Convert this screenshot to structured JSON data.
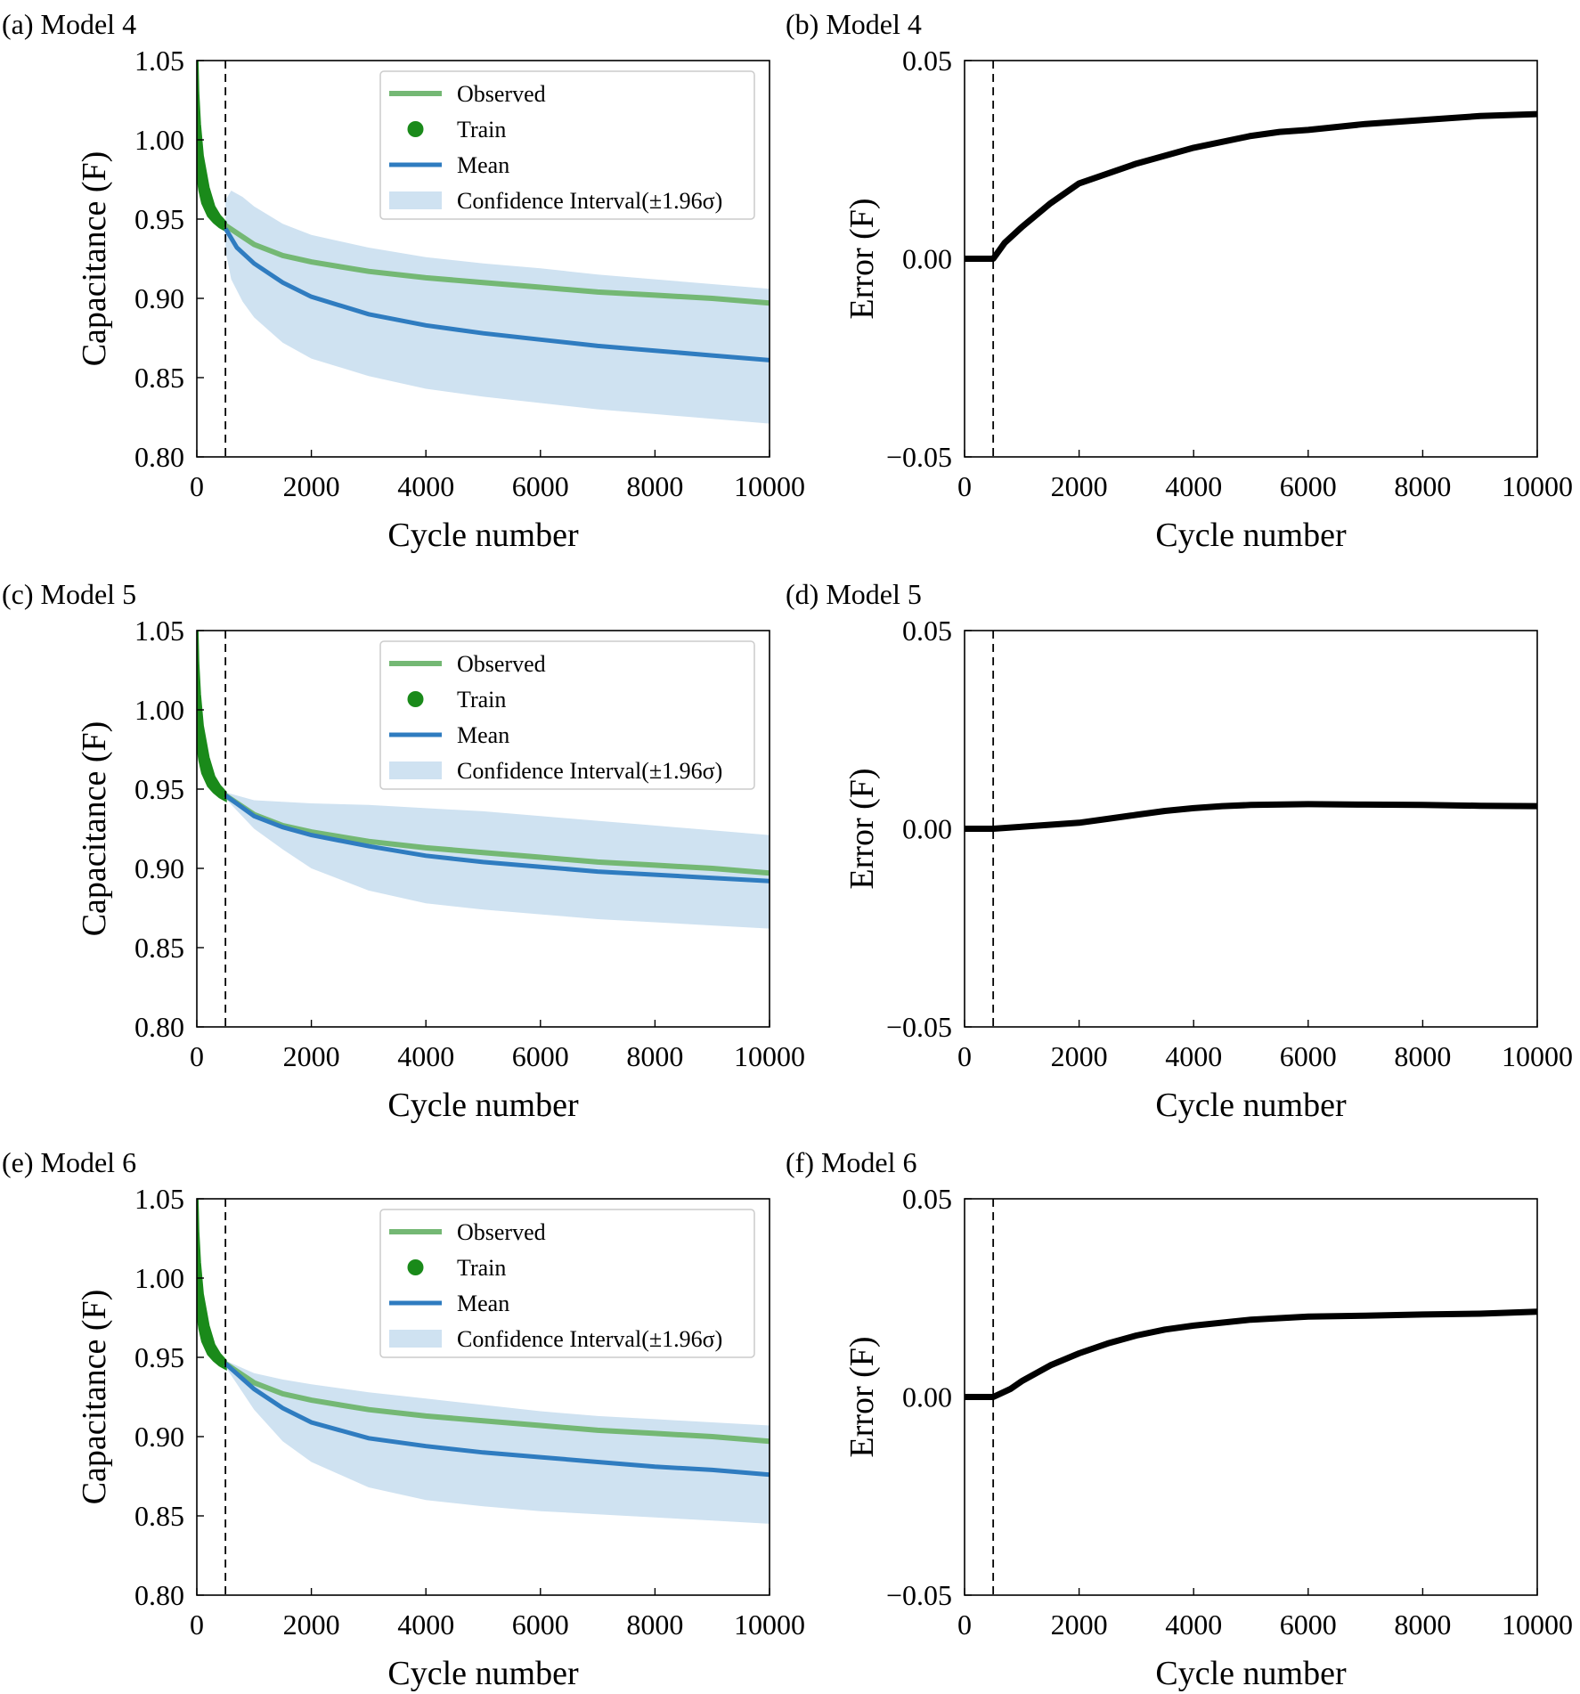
{
  "figure": {
    "panels": [
      {
        "id": "a",
        "label": "(a) Model 4",
        "kind": "capacitance"
      },
      {
        "id": "b",
        "label": "(b) Model 4",
        "kind": "error"
      },
      {
        "id": "c",
        "label": "(c) Model 5",
        "kind": "capacitance"
      },
      {
        "id": "d",
        "label": "(d) Model 5",
        "kind": "error"
      },
      {
        "id": "e",
        "label": "(e) Model 6",
        "kind": "capacitance"
      },
      {
        "id": "f",
        "label": "(f) Model 6",
        "kind": "error"
      }
    ]
  },
  "colors": {
    "observed": "#74b874",
    "train": "#1a8a1a",
    "mean": "#2f7cc0",
    "ci": "#cfe2f1",
    "error": "#000000",
    "divider": "#000000"
  },
  "chart_data": [
    {
      "type": "line",
      "panel": "a",
      "title": "(a) Model 4",
      "xlabel": "Cycle number",
      "ylabel": "Capacitance (F)",
      "xlim": [
        0,
        10000
      ],
      "ylim": [
        0.8,
        1.05
      ],
      "xticks": [
        0,
        2000,
        4000,
        6000,
        8000,
        10000
      ],
      "xtick_labels": [
        "0",
        "2000",
        "4000",
        "6000",
        "8000",
        "10000"
      ],
      "yticks": [
        0.8,
        0.85,
        0.9,
        0.95,
        1.0,
        1.05
      ],
      "ytick_labels": [
        "0.80",
        "0.85",
        "0.90",
        "0.95",
        "1.00",
        "1.05"
      ],
      "train_end": 500,
      "legend_position": "top-right",
      "legend": [
        "Observed",
        "Train",
        "Mean",
        "Confidence Interval(±1.96σ)"
      ],
      "train": {
        "x": [
          0,
          20,
          50,
          100,
          200,
          300,
          400,
          500
        ],
        "upper": [
          1.06,
          1.03,
          1.01,
          0.99,
          0.97,
          0.958,
          0.952,
          0.948
        ],
        "lower": [
          0.985,
          0.975,
          0.968,
          0.96,
          0.952,
          0.948,
          0.945,
          0.943
        ]
      },
      "observed": {
        "x": [
          500,
          1000,
          1500,
          2000,
          3000,
          4000,
          5000,
          6000,
          7000,
          8000,
          9000,
          10000
        ],
        "y": [
          0.946,
          0.934,
          0.927,
          0.923,
          0.917,
          0.913,
          0.91,
          0.907,
          0.904,
          0.902,
          0.9,
          0.897
        ]
      },
      "mean": {
        "x": [
          500,
          700,
          1000,
          1500,
          2000,
          3000,
          4000,
          5000,
          6000,
          7000,
          8000,
          9000,
          10000
        ],
        "y": [
          0.944,
          0.932,
          0.922,
          0.91,
          0.901,
          0.89,
          0.883,
          0.878,
          0.874,
          0.87,
          0.867,
          0.864,
          0.861
        ]
      },
      "ci": {
        "x": [
          500,
          600,
          800,
          1000,
          1500,
          2000,
          3000,
          4000,
          5000,
          6000,
          7000,
          8000,
          9000,
          10000
        ],
        "upper": [
          0.962,
          0.968,
          0.964,
          0.958,
          0.947,
          0.94,
          0.932,
          0.926,
          0.922,
          0.919,
          0.915,
          0.912,
          0.909,
          0.906
        ],
        "lower": [
          0.93,
          0.912,
          0.898,
          0.888,
          0.872,
          0.862,
          0.851,
          0.843,
          0.838,
          0.834,
          0.83,
          0.827,
          0.824,
          0.821
        ]
      }
    },
    {
      "type": "line",
      "panel": "b",
      "title": "(b) Model 4",
      "xlabel": "Cycle number",
      "ylabel": "Error (F)",
      "xlim": [
        0,
        10000
      ],
      "ylim": [
        -0.05,
        0.05
      ],
      "xticks": [
        0,
        2000,
        4000,
        6000,
        8000,
        10000
      ],
      "xtick_labels": [
        "0",
        "2000",
        "4000",
        "6000",
        "8000",
        "10000"
      ],
      "yticks": [
        -0.05,
        0,
        0.05
      ],
      "ytick_labels": [
        "−0.05",
        "0.00",
        "0.05"
      ],
      "train_end": 500,
      "error": {
        "x": [
          0,
          200,
          500,
          700,
          1000,
          1500,
          2000,
          3000,
          4000,
          5000,
          5500,
          6000,
          7000,
          8000,
          9000,
          10000
        ],
        "y": [
          0.0,
          0.0,
          0.0,
          0.004,
          0.008,
          0.014,
          0.019,
          0.024,
          0.028,
          0.031,
          0.032,
          0.0325,
          0.034,
          0.035,
          0.036,
          0.0365
        ]
      }
    },
    {
      "type": "line",
      "panel": "c",
      "title": "(c) Model 5",
      "xlabel": "Cycle number",
      "ylabel": "Capacitance (F)",
      "xlim": [
        0,
        10000
      ],
      "ylim": [
        0.8,
        1.05
      ],
      "xticks": [
        0,
        2000,
        4000,
        6000,
        8000,
        10000
      ],
      "xtick_labels": [
        "0",
        "2000",
        "4000",
        "6000",
        "8000",
        "10000"
      ],
      "yticks": [
        0.8,
        0.85,
        0.9,
        0.95,
        1.0,
        1.05
      ],
      "ytick_labels": [
        "0.80",
        "0.85",
        "0.90",
        "0.95",
        "1.00",
        "1.05"
      ],
      "train_end": 500,
      "legend_position": "top-right",
      "legend": [
        "Observed",
        "Train",
        "Mean",
        "Confidence Interval(±1.96σ)"
      ],
      "train": {
        "x": [
          0,
          20,
          50,
          100,
          200,
          300,
          400,
          500
        ],
        "upper": [
          1.06,
          1.03,
          1.01,
          0.99,
          0.97,
          0.958,
          0.952,
          0.948
        ],
        "lower": [
          0.985,
          0.975,
          0.968,
          0.96,
          0.952,
          0.948,
          0.945,
          0.943
        ]
      },
      "observed": {
        "x": [
          500,
          1000,
          1500,
          2000,
          3000,
          4000,
          5000,
          6000,
          7000,
          8000,
          9000,
          10000
        ],
        "y": [
          0.946,
          0.934,
          0.927,
          0.923,
          0.917,
          0.913,
          0.91,
          0.907,
          0.904,
          0.902,
          0.9,
          0.897
        ]
      },
      "mean": {
        "x": [
          500,
          1000,
          1500,
          2000,
          3000,
          4000,
          5000,
          6000,
          7000,
          8000,
          9000,
          10000
        ],
        "y": [
          0.946,
          0.933,
          0.926,
          0.921,
          0.914,
          0.908,
          0.904,
          0.901,
          0.898,
          0.896,
          0.894,
          0.892
        ]
      },
      "ci": {
        "x": [
          500,
          1000,
          1500,
          2000,
          3000,
          4000,
          5000,
          6000,
          7000,
          8000,
          9000,
          10000
        ],
        "upper": [
          0.948,
          0.943,
          0.942,
          0.941,
          0.94,
          0.938,
          0.936,
          0.933,
          0.93,
          0.927,
          0.924,
          0.921
        ],
        "lower": [
          0.944,
          0.925,
          0.912,
          0.9,
          0.886,
          0.878,
          0.874,
          0.871,
          0.868,
          0.866,
          0.864,
          0.862
        ]
      }
    },
    {
      "type": "line",
      "panel": "d",
      "title": "(d) Model 5",
      "xlabel": "Cycle number",
      "ylabel": "Error (F)",
      "xlim": [
        0,
        10000
      ],
      "ylim": [
        -0.05,
        0.05
      ],
      "xticks": [
        0,
        2000,
        4000,
        6000,
        8000,
        10000
      ],
      "xtick_labels": [
        "0",
        "2000",
        "4000",
        "6000",
        "8000",
        "10000"
      ],
      "yticks": [
        -0.05,
        0,
        0.05
      ],
      "ytick_labels": [
        "−0.05",
        "0.00",
        "0.05"
      ],
      "train_end": 500,
      "error": {
        "x": [
          0,
          500,
          1000,
          1500,
          2000,
          2500,
          3000,
          3500,
          4000,
          4500,
          5000,
          6000,
          7000,
          8000,
          9000,
          10000
        ],
        "y": [
          0.0,
          0.0,
          0.0005,
          0.001,
          0.0015,
          0.0025,
          0.0035,
          0.0045,
          0.0052,
          0.0057,
          0.006,
          0.0062,
          0.0061,
          0.006,
          0.0058,
          0.0057
        ]
      }
    },
    {
      "type": "line",
      "panel": "e",
      "title": "(e) Model 6",
      "xlabel": "Cycle number",
      "ylabel": "Capacitance (F)",
      "xlim": [
        0,
        10000
      ],
      "ylim": [
        0.8,
        1.05
      ],
      "xticks": [
        0,
        2000,
        4000,
        6000,
        8000,
        10000
      ],
      "xtick_labels": [
        "0",
        "2000",
        "4000",
        "6000",
        "8000",
        "10000"
      ],
      "yticks": [
        0.8,
        0.85,
        0.9,
        0.95,
        1.0,
        1.05
      ],
      "ytick_labels": [
        "0.80",
        "0.85",
        "0.90",
        "0.95",
        "1.00",
        "1.05"
      ],
      "train_end": 500,
      "legend_position": "top-right",
      "legend": [
        "Observed",
        "Train",
        "Mean",
        "Confidence Interval(±1.96σ)"
      ],
      "train": {
        "x": [
          0,
          20,
          50,
          100,
          200,
          300,
          400,
          500
        ],
        "upper": [
          1.06,
          1.03,
          1.01,
          0.99,
          0.97,
          0.958,
          0.952,
          0.948
        ],
        "lower": [
          0.985,
          0.975,
          0.968,
          0.96,
          0.952,
          0.948,
          0.945,
          0.943
        ]
      },
      "observed": {
        "x": [
          500,
          1000,
          1500,
          2000,
          3000,
          4000,
          5000,
          6000,
          7000,
          8000,
          9000,
          10000
        ],
        "y": [
          0.946,
          0.934,
          0.927,
          0.923,
          0.917,
          0.913,
          0.91,
          0.907,
          0.904,
          0.902,
          0.9,
          0.897
        ]
      },
      "mean": {
        "x": [
          500,
          1000,
          1500,
          2000,
          3000,
          4000,
          5000,
          6000,
          7000,
          8000,
          9000,
          10000
        ],
        "y": [
          0.946,
          0.93,
          0.918,
          0.909,
          0.899,
          0.894,
          0.89,
          0.887,
          0.884,
          0.881,
          0.879,
          0.876
        ]
      },
      "ci": {
        "x": [
          500,
          1000,
          1500,
          2000,
          3000,
          4000,
          5000,
          6000,
          7000,
          8000,
          9000,
          10000
        ],
        "upper": [
          0.948,
          0.94,
          0.936,
          0.933,
          0.928,
          0.924,
          0.92,
          0.916,
          0.913,
          0.911,
          0.909,
          0.907
        ],
        "lower": [
          0.944,
          0.917,
          0.897,
          0.884,
          0.868,
          0.86,
          0.856,
          0.853,
          0.851,
          0.849,
          0.847,
          0.845
        ]
      }
    },
    {
      "type": "line",
      "panel": "f",
      "title": "(f) Model 6",
      "xlabel": "Cycle number",
      "ylabel": "Error (F)",
      "xlim": [
        0,
        10000
      ],
      "ylim": [
        -0.05,
        0.05
      ],
      "xticks": [
        0,
        2000,
        4000,
        6000,
        8000,
        10000
      ],
      "xtick_labels": [
        "0",
        "2000",
        "4000",
        "6000",
        "8000",
        "10000"
      ],
      "yticks": [
        -0.05,
        0,
        0.05
      ],
      "ytick_labels": [
        "−0.05",
        "0.00",
        "0.05"
      ],
      "train_end": 500,
      "error": {
        "x": [
          0,
          500,
          800,
          1000,
          1500,
          2000,
          2500,
          3000,
          3500,
          4000,
          5000,
          6000,
          7000,
          8000,
          9000,
          10000
        ],
        "y": [
          0.0,
          0.0,
          0.002,
          0.004,
          0.008,
          0.011,
          0.0135,
          0.0155,
          0.017,
          0.018,
          0.0195,
          0.0203,
          0.0205,
          0.0208,
          0.021,
          0.0215
        ]
      }
    }
  ]
}
